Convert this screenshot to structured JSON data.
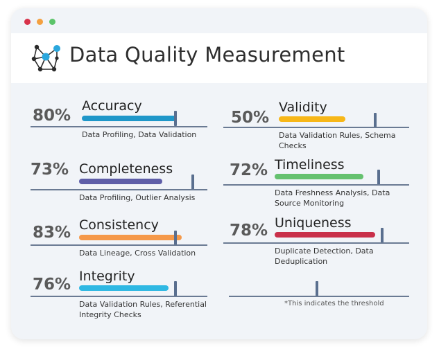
{
  "window": {
    "controls": [
      {
        "name": "close",
        "color": "#d8334a"
      },
      {
        "name": "minimize",
        "color": "#f4a040"
      },
      {
        "name": "maximize",
        "color": "#5cc46a"
      }
    ]
  },
  "header": {
    "title": "Data Quality Measurement",
    "logo_icon": "network-node-icon"
  },
  "metrics": [
    {
      "key": "accuracy",
      "percent": "80%",
      "label": "Accuracy",
      "fill": 0.8,
      "color": "#1f97c9",
      "description": "Data Profiling, Data Validation"
    },
    {
      "key": "validity",
      "percent": "50%",
      "label": "Validity",
      "fill": 0.5,
      "color": "#f7b718",
      "description": "Data Validation Rules, Schema Checks"
    },
    {
      "key": "completeness",
      "percent": "73%",
      "label": "Completeness",
      "fill": 0.73,
      "color": "#5e5ea8",
      "description": "Data Profiling, Outlier Analysis"
    },
    {
      "key": "timeliness",
      "percent": "72%",
      "label": "Timeliness",
      "fill": 0.72,
      "color": "#65c16f",
      "description": "Data Freshness Analysis, Data Source Monitoring"
    },
    {
      "key": "consistency",
      "percent": "83%",
      "label": "Consistency",
      "fill": 0.83,
      "color": "#f5994a",
      "description": "Data Lineage, Cross Validation"
    },
    {
      "key": "uniqueness",
      "percent": "78%",
      "label": "Uniqueness",
      "fill": 0.78,
      "color": "#c9304a",
      "description": "Duplicate Detection, Data Deduplication"
    },
    {
      "key": "integrity",
      "percent": "76%",
      "label": "Integrity",
      "fill": 0.76,
      "color": "#2fb8e3",
      "description": "Data Validation Rules, Referential Integrity Checks"
    }
  ],
  "legend": {
    "note": "*This indicates the threshold"
  }
}
